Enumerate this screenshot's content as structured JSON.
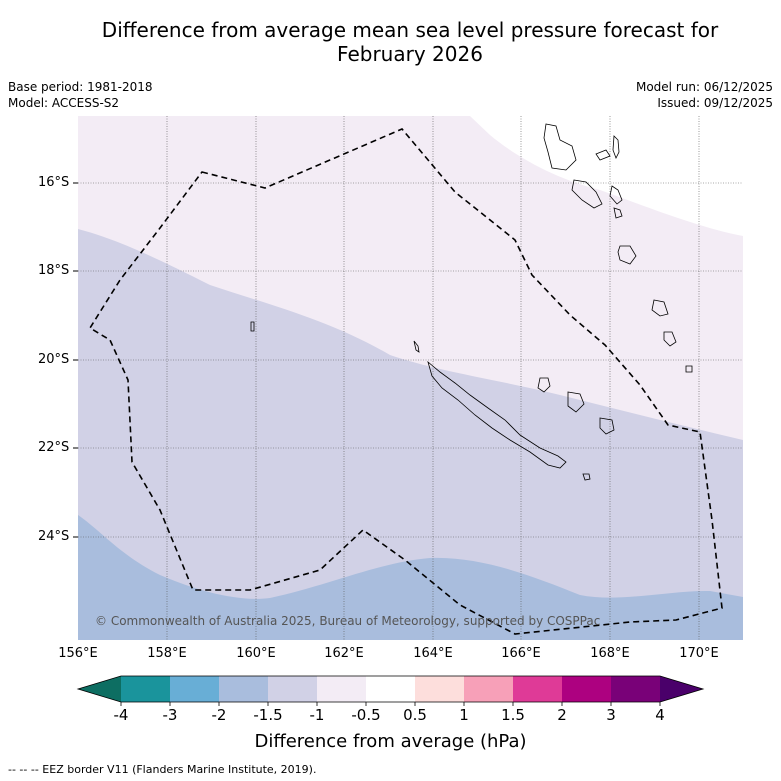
{
  "title_line1": "Difference from average mean sea level pressure forecast for",
  "title_line2": "February 2026",
  "base_period": "Base period: 1981-2018",
  "model": "Model: ACCESS-S2",
  "model_run": "Model run: 06/12/2025",
  "issued": "Issued: 09/12/2025",
  "latitudes": [
    "16°S",
    "18°S",
    "20°S",
    "22°S",
    "24°S"
  ],
  "longitudes": [
    "156°E",
    "158°E",
    "160°E",
    "162°E",
    "164°E",
    "166°E",
    "168°E",
    "170°E"
  ],
  "copyright": "© Commonwealth of Australia 2025, Bureau of Meteorology, supported by COSPPac",
  "colorbar": {
    "ticks": [
      "-4",
      "-3",
      "-2",
      "-1.5",
      "-1",
      "-0.5",
      "0.5",
      "1",
      "1.5",
      "2",
      "3",
      "4"
    ],
    "colors": [
      "#0d6e62",
      "#1a949c",
      "#68aed6",
      "#a9bddd",
      "#d1d1e6",
      "#f3ecf5",
      "#ffffff",
      "#fddedc",
      "#f7a0b8",
      "#df3a97",
      "#ad0180",
      "#790178",
      "#4a006a"
    ],
    "label": "Difference from average (hPa)"
  },
  "fill_colors": {
    "light": "#f3ecf5",
    "medium": "#d1d1e6",
    "dark": "#a9bddd"
  },
  "footer": "--  --  -- EEZ border V11 (Flanders Marine Institute, 2019)."
}
